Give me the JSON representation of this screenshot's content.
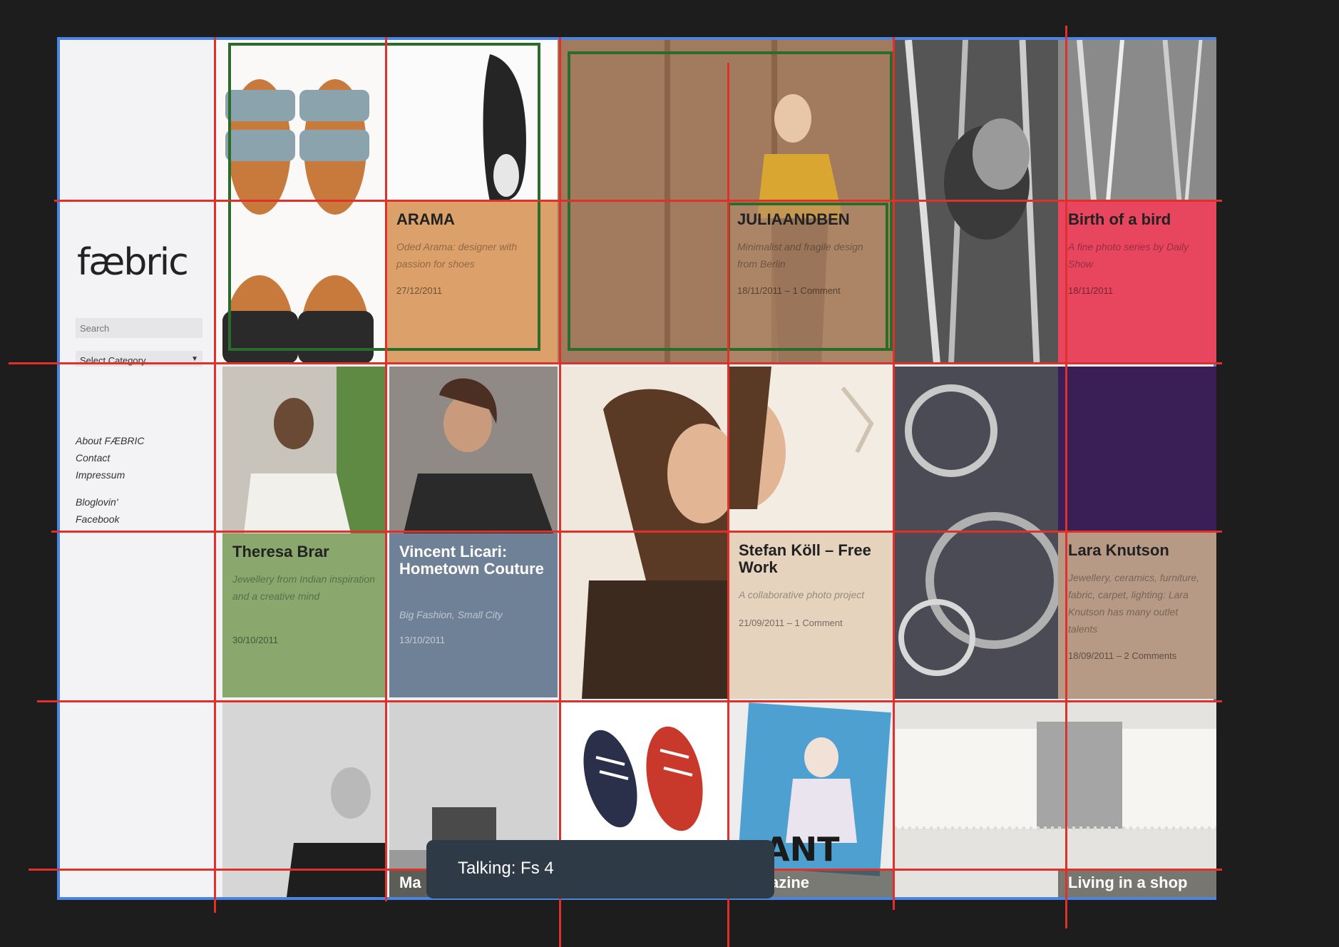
{
  "site": {
    "logo": "fæbric",
    "search_placeholder": "Search",
    "category_select": "Select Category"
  },
  "sidebar": {
    "links": [
      "About FÆBRIC",
      "Contact",
      "Impressum"
    ],
    "social": [
      "Bloglovin'",
      "Facebook"
    ]
  },
  "posts": {
    "arama": {
      "title": "ARAMA",
      "desc": "Oded Arama: designer with passion for shoes",
      "date": "27/12/2011"
    },
    "juliaandben": {
      "title": "JULIAANDBEN",
      "desc": "Minimalist and fragile design from Berlin",
      "meta": "18/11/2011 – 1 Comment"
    },
    "birth": {
      "title": "Birth of a bird",
      "desc": "A fine photo series by Daily Show",
      "date": "18/11/2011"
    },
    "theresa": {
      "title": "Theresa Brar",
      "desc": "Jewellery from Indian inspiration and a creative mind",
      "date": "30/10/2011"
    },
    "vincent": {
      "title": "Vincent Licari: Hometown Couture",
      "desc": "Big Fashion, Small City",
      "date": "13/10/2011"
    },
    "stefan": {
      "title": "Stefan Köll – Free Work",
      "desc": "A collaborative photo project",
      "meta": "21/09/2011 – 1 Comment"
    },
    "lara": {
      "title": "Lara Knutson",
      "desc": "Jewellery, ceramics, furniture, fabric, carpet, lighting: Lara Knutson has many outlet talents",
      "meta": "18/09/2011 – 2 Comments"
    },
    "ma": {
      "label": "Ma"
    },
    "magazine": {
      "label": "Magazine"
    },
    "living": {
      "label": "Living in a shop"
    }
  },
  "tooltip": {
    "text": "Talking: Fs 4"
  },
  "colors": {
    "overlay_red": "#e0302a",
    "frame_blue": "#4d84e0",
    "box_green": "#2b6b2b",
    "arama_tile": "#dca06a",
    "birth_tile": "#e8465e",
    "theresa_tile": "#8aa86e",
    "vincent_tile": "#6f8197",
    "stefan_tile": "#e6d3bd",
    "lara_tile": "#b69a86"
  }
}
